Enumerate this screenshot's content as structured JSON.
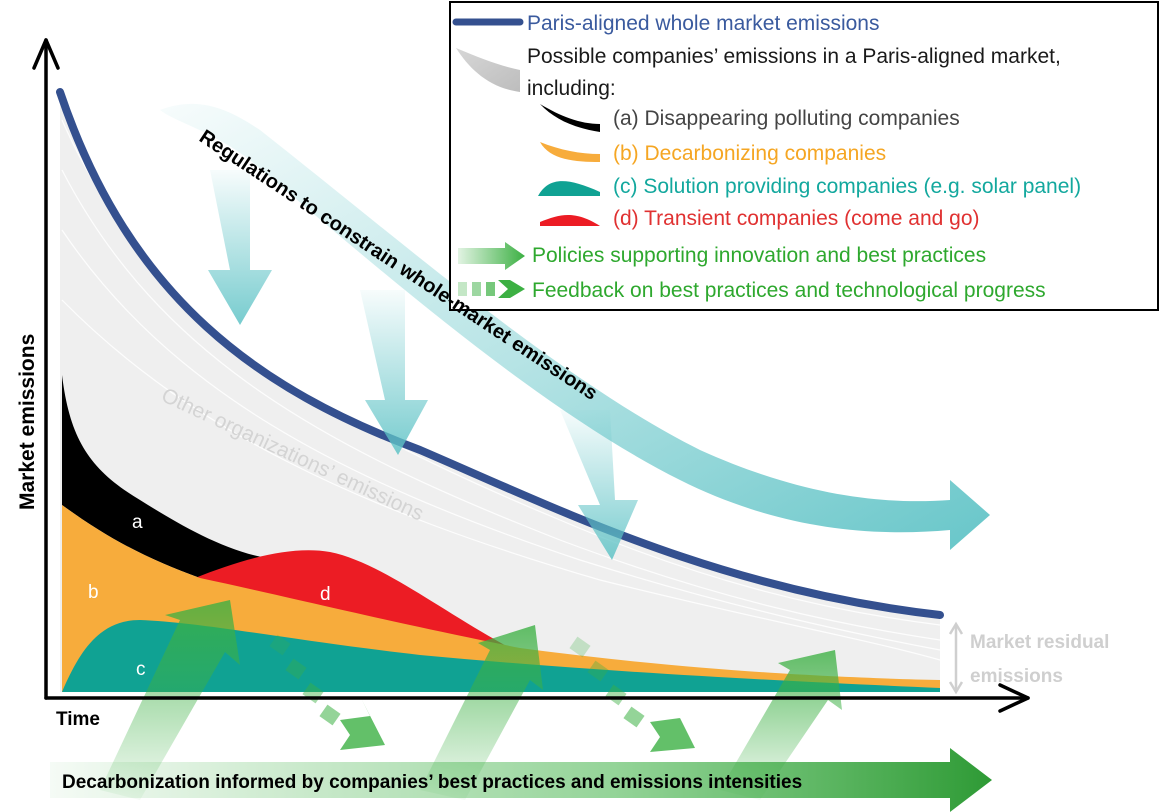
{
  "axes": {
    "y_label": "Market emissions",
    "x_label": "Time"
  },
  "legend": {
    "items": [
      {
        "key": "paris",
        "text": "Paris-aligned whole market emissions",
        "color": "#3a5a9e"
      },
      {
        "key": "possible_1",
        "text": "Possible companies’ emissions in a Paris-aligned market,",
        "color": "#1a1a1a"
      },
      {
        "key": "possible_2",
        "text": "including:",
        "color": "#1a1a1a"
      },
      {
        "key": "a",
        "text": "(a) Disappearing polluting companies",
        "color": "#444444"
      },
      {
        "key": "b",
        "text": "(b) Decarbonizing companies",
        "color": "#f5a623"
      },
      {
        "key": "c",
        "text": "(c) Solution providing companies (e.g. solar panel)",
        "color": "#13a89e"
      },
      {
        "key": "d",
        "text": "(d) Transient companies (come and go)",
        "color": "#e03131"
      },
      {
        "key": "policies",
        "text": "Policies supporting innovation and best practices",
        "color": "#2ea82e"
      },
      {
        "key": "feedback",
        "text": "Feedback on best practices and technological progress",
        "color": "#2ea82e"
      }
    ]
  },
  "annotations": {
    "regulations": "Regulations to constrain whole-market emissions",
    "other_orgs": "Other organizations’ emissions",
    "residual_1": "Market residual",
    "residual_2": "emissions",
    "bottom_banner": "Decarbonization informed by companies’ best practices and emissions intensities"
  },
  "regions": {
    "a": "a",
    "b": "b",
    "c": "c",
    "d": "d"
  },
  "colors": {
    "paris_line": "#34508f",
    "gray_area": "#efefef",
    "a": "#000000",
    "b": "#f7ac3c",
    "c": "#10a293",
    "d": "#ec1c24",
    "teal_arrow": "#5fc3c6",
    "green_arrow": "#3cb043"
  }
}
